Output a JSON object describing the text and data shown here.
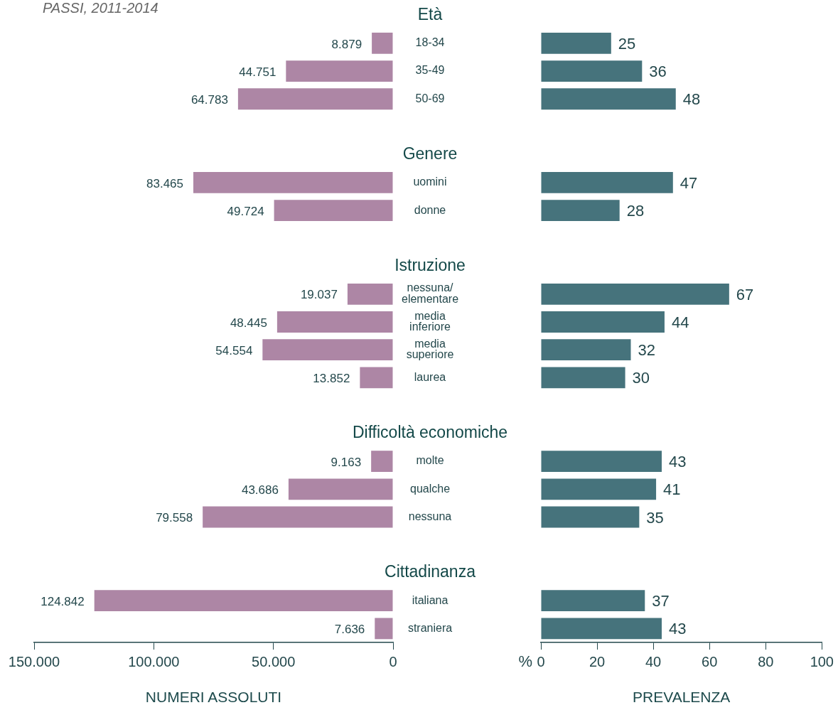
{
  "chart_data": [
    {
      "type": "bar",
      "orientation": "horizontal",
      "xlabel": "NUMERI ASSOLUTI",
      "annotations": [
        "PASSI, 2011-2014"
      ],
      "categories": [
        "Età",
        "18-34",
        "35-49",
        "50-69",
        null,
        "Genere",
        "uomini",
        "donne",
        null,
        "Istruzione",
        "nessuna/\nelementare",
        "media\ninferiore",
        "media\nsuperiore",
        "laurea",
        null,
        "Difficoltà economiche",
        "molte",
        "qualche",
        "nessuna",
        null,
        "Cittadinanza",
        "italiana",
        "straniera"
      ],
      "values": [
        null,
        8879,
        44751,
        64783,
        null,
        null,
        83465,
        49724,
        null,
        null,
        19037,
        48445,
        54554,
        13852,
        null,
        null,
        9163,
        43686,
        79558,
        null,
        null,
        124842,
        7636
      ],
      "value_labels": [
        null,
        "8.879",
        "44.751",
        "64.783",
        null,
        null,
        "83.465",
        "49.724",
        null,
        null,
        "19.037",
        "48.445",
        "54.554",
        "13.852",
        null,
        null,
        "9.163",
        "43.686",
        "79.558",
        null,
        null,
        "124.842",
        "7.636"
      ],
      "color": "#ad86a5",
      "xlim": [
        150000,
        0
      ],
      "xticks": [
        {
          "value": 150000,
          "label": "150.000"
        },
        {
          "value": 100000,
          "label": "100.000"
        },
        {
          "value": 50000,
          "label": "50.000"
        },
        0
      ],
      "grid": false,
      "legend": false
    },
    {
      "type": "bar",
      "orientation": "horizontal",
      "xlabel": "PREVALENZA",
      "annotations": [
        "%"
      ],
      "tick_labels": "x",
      "data_labels": true,
      "categories": [
        null,
        null,
        null,
        null,
        null,
        null,
        null,
        null,
        null,
        null,
        null,
        null,
        null,
        null,
        null,
        null,
        null,
        null,
        null,
        null,
        null,
        null,
        null
      ],
      "values": [
        null,
        25,
        36,
        48,
        null,
        null,
        47,
        28,
        null,
        null,
        67,
        44,
        32,
        30,
        null,
        null,
        43,
        41,
        35,
        null,
        null,
        37,
        43
      ],
      "color": "#46737c",
      "xlim": [
        0,
        100
      ],
      "xticks": [
        0,
        20,
        40,
        60,
        80,
        100
      ],
      "grid": false,
      "legend": false
    }
  ]
}
